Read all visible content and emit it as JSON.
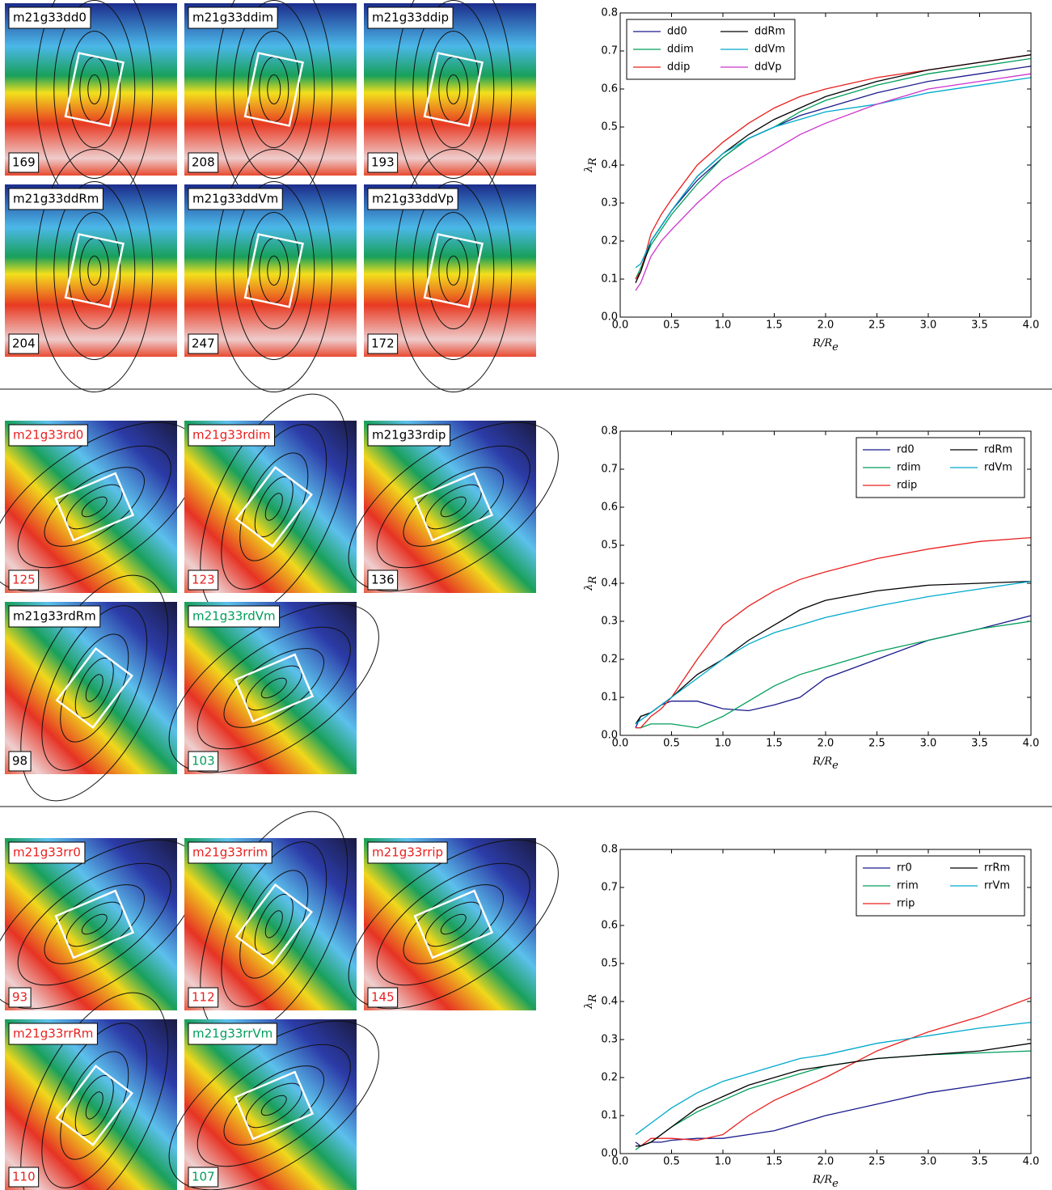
{
  "panels": [
    {
      "maps": [
        {
          "name": "m21g33dd0",
          "value": 169,
          "label_color": "#000000"
        },
        {
          "name": "m21g33ddim",
          "value": 208,
          "label_color": "#000000"
        },
        {
          "name": "m21g33ddip",
          "value": 193,
          "label_color": "#000000"
        },
        {
          "name": "m21g33ddRm",
          "value": 204,
          "label_color": "#000000"
        },
        {
          "name": "m21g33ddVm",
          "value": 247,
          "label_color": "#000000"
        },
        {
          "name": "m21g33ddVp",
          "value": 172,
          "label_color": "#000000"
        }
      ]
    },
    {
      "maps": [
        {
          "name": "m21g33rd0",
          "value": 125,
          "label_color": "#e8201e"
        },
        {
          "name": "m21g33rdim",
          "value": 123,
          "label_color": "#e8201e"
        },
        {
          "name": "m21g33rdip",
          "value": 136,
          "label_color": "#000000"
        },
        {
          "name": "m21g33rdRm",
          "value": 98,
          "label_color": "#000000"
        },
        {
          "name": "m21g33rdVm",
          "value": 103,
          "label_color": "#009e5a"
        }
      ]
    },
    {
      "maps": [
        {
          "name": "m21g33rr0",
          "value": 93,
          "label_color": "#e8201e"
        },
        {
          "name": "m21g33rrim",
          "value": 112,
          "label_color": "#e8201e"
        },
        {
          "name": "m21g33rrip",
          "value": 145,
          "label_color": "#e8201e"
        },
        {
          "name": "m21g33rrRm",
          "value": 110,
          "label_color": "#e8201e"
        },
        {
          "name": "m21g33rrVm",
          "value": 107,
          "label_color": "#009e5a"
        }
      ]
    }
  ],
  "chart_data": [
    {
      "type": "line",
      "legend": "upper left",
      "xlabel": {
        "text": "R/R",
        "subscript": "e"
      },
      "ylabel": {
        "symbol": "λ",
        "subscript": "R"
      },
      "xlim": [
        0,
        4
      ],
      "ylim": [
        0,
        0.8
      ],
      "xticks": [
        {
          "value": 0,
          "label": "0.0"
        },
        0.5,
        {
          "value": 1,
          "label": "1.0"
        },
        1.5,
        {
          "value": 2,
          "label": "2.0"
        },
        2.5,
        {
          "value": 3,
          "label": "3.0"
        },
        3.5,
        {
          "value": 4,
          "label": "4.0"
        }
      ],
      "yticks": [
        {
          "value": 0,
          "label": "0.0"
        },
        0.1,
        0.2,
        0.3,
        0.4,
        0.5,
        0.6,
        0.7,
        0.8
      ],
      "x": [
        0.15,
        0.2,
        0.3,
        0.4,
        0.5,
        0.75,
        1.0,
        1.25,
        1.5,
        1.75,
        2.0,
        2.5,
        3.0,
        3.5,
        4.0
      ],
      "series": [
        {
          "name": "dd0",
          "color": "#1a1a8c",
          "values": [
            0.1,
            0.12,
            0.2,
            0.24,
            0.28,
            0.36,
            0.42,
            0.47,
            0.5,
            0.53,
            0.55,
            0.59,
            0.62,
            0.64,
            0.66
          ]
        },
        {
          "name": "ddim",
          "color": "#009e5a",
          "values": [
            0.1,
            0.13,
            0.19,
            0.23,
            0.27,
            0.35,
            0.42,
            0.47,
            0.5,
            0.54,
            0.57,
            0.61,
            0.64,
            0.66,
            0.68
          ]
        },
        {
          "name": "ddip",
          "color": "#e8201e",
          "values": [
            0.1,
            0.12,
            0.22,
            0.27,
            0.31,
            0.4,
            0.46,
            0.51,
            0.55,
            0.58,
            0.6,
            0.63,
            0.65,
            0.67,
            0.69
          ]
        },
        {
          "name": "ddRm",
          "color": "#000000",
          "values": [
            0.09,
            0.12,
            0.2,
            0.24,
            0.28,
            0.37,
            0.43,
            0.48,
            0.52,
            0.55,
            0.58,
            0.62,
            0.65,
            0.67,
            0.69
          ]
        },
        {
          "name": "ddVm",
          "color": "#00a9cc",
          "values": [
            0.13,
            0.14,
            0.2,
            0.24,
            0.28,
            0.37,
            0.43,
            0.47,
            0.5,
            0.52,
            0.54,
            0.56,
            0.59,
            0.61,
            0.63
          ]
        },
        {
          "name": "ddVp",
          "color": "#cc33cc",
          "values": [
            0.07,
            0.09,
            0.16,
            0.2,
            0.23,
            0.3,
            0.36,
            0.4,
            0.44,
            0.48,
            0.51,
            0.56,
            0.6,
            0.62,
            0.64
          ]
        }
      ]
    },
    {
      "type": "line",
      "legend": "upper right",
      "xlabel": {
        "text": "R/R",
        "subscript": "e"
      },
      "ylabel": {
        "symbol": "λ",
        "subscript": "R"
      },
      "xlim": [
        0,
        4
      ],
      "ylim": [
        0,
        0.8
      ],
      "xticks": [
        {
          "value": 0,
          "label": "0.0"
        },
        0.5,
        {
          "value": 1,
          "label": "1.0"
        },
        1.5,
        {
          "value": 2,
          "label": "2.0"
        },
        2.5,
        {
          "value": 3,
          "label": "3.0"
        },
        3.5,
        {
          "value": 4,
          "label": "4.0"
        }
      ],
      "yticks": [
        {
          "value": 0,
          "label": "0.0"
        },
        0.1,
        0.2,
        0.3,
        0.4,
        0.5,
        0.6,
        0.7,
        0.8
      ],
      "x": [
        0.15,
        0.2,
        0.3,
        0.4,
        0.5,
        0.75,
        1.0,
        1.25,
        1.5,
        1.75,
        2.0,
        2.5,
        3.0,
        3.5,
        4.0
      ],
      "series": [
        {
          "name": "rd0",
          "color": "#1a1a8c",
          "values": [
            0.02,
            0.05,
            0.06,
            0.08,
            0.09,
            0.09,
            0.07,
            0.065,
            0.08,
            0.1,
            0.15,
            0.2,
            0.25,
            0.28,
            0.315
          ]
        },
        {
          "name": "rdim",
          "color": "#009e5a",
          "values": [
            0.02,
            0.02,
            0.03,
            0.03,
            0.03,
            0.02,
            0.05,
            0.09,
            0.13,
            0.16,
            0.18,
            0.22,
            0.25,
            0.28,
            0.3
          ]
        },
        {
          "name": "rdip",
          "color": "#e8201e",
          "values": [
            0.02,
            0.02,
            0.05,
            0.07,
            0.1,
            0.2,
            0.29,
            0.34,
            0.38,
            0.41,
            0.43,
            0.465,
            0.49,
            0.51,
            0.52
          ]
        },
        {
          "name": "rdRm",
          "color": "#000000",
          "values": [
            0.03,
            0.05,
            0.06,
            0.08,
            0.1,
            0.16,
            0.2,
            0.25,
            0.29,
            0.33,
            0.355,
            0.38,
            0.395,
            0.4,
            0.405
          ]
        },
        {
          "name": "rdVm",
          "color": "#00a9cc",
          "values": [
            0.03,
            0.04,
            0.06,
            0.08,
            0.1,
            0.15,
            0.2,
            0.24,
            0.27,
            0.29,
            0.31,
            0.34,
            0.365,
            0.385,
            0.405
          ]
        }
      ]
    },
    {
      "type": "line",
      "legend": "upper right",
      "xlabel": {
        "text": "R/R",
        "subscript": "e"
      },
      "ylabel": {
        "symbol": "λ",
        "subscript": "R"
      },
      "xlim": [
        0,
        4
      ],
      "ylim": [
        0,
        0.8
      ],
      "xticks": [
        {
          "value": 0,
          "label": "0.0"
        },
        0.5,
        {
          "value": 1,
          "label": "1.0"
        },
        1.5,
        {
          "value": 2,
          "label": "2.0"
        },
        2.5,
        {
          "value": 3,
          "label": "3.0"
        },
        3.5,
        {
          "value": 4,
          "label": "4.0"
        }
      ],
      "yticks": [
        {
          "value": 0,
          "label": "0.0"
        },
        0.1,
        0.2,
        0.3,
        0.4,
        0.5,
        0.6,
        0.7,
        0.8
      ],
      "x": [
        0.15,
        0.2,
        0.3,
        0.4,
        0.5,
        0.75,
        1.0,
        1.25,
        1.5,
        1.75,
        2.0,
        2.5,
        3.0,
        3.5,
        4.0
      ],
      "series": [
        {
          "name": "rr0",
          "color": "#1a1a8c",
          "values": [
            0.03,
            0.02,
            0.03,
            0.03,
            0.035,
            0.04,
            0.04,
            0.05,
            0.06,
            0.08,
            0.1,
            0.13,
            0.16,
            0.18,
            0.2
          ]
        },
        {
          "name": "rrim",
          "color": "#009e5a",
          "values": [
            0.01,
            0.02,
            0.03,
            0.05,
            0.07,
            0.11,
            0.14,
            0.17,
            0.19,
            0.21,
            0.23,
            0.25,
            0.26,
            0.265,
            0.27
          ]
        },
        {
          "name": "rrip",
          "color": "#e8201e",
          "values": [
            0.02,
            0.02,
            0.04,
            0.04,
            0.04,
            0.035,
            0.05,
            0.1,
            0.14,
            0.17,
            0.2,
            0.27,
            0.32,
            0.36,
            0.41
          ]
        },
        {
          "name": "rrRm",
          "color": "#000000",
          "values": [
            0.02,
            0.02,
            0.03,
            0.05,
            0.07,
            0.12,
            0.15,
            0.18,
            0.2,
            0.22,
            0.23,
            0.25,
            0.26,
            0.27,
            0.29
          ]
        },
        {
          "name": "rrVm",
          "color": "#00a9cc",
          "values": [
            0.05,
            0.06,
            0.08,
            0.1,
            0.12,
            0.16,
            0.19,
            0.21,
            0.23,
            0.25,
            0.26,
            0.29,
            0.31,
            0.33,
            0.345
          ]
        }
      ]
    }
  ]
}
